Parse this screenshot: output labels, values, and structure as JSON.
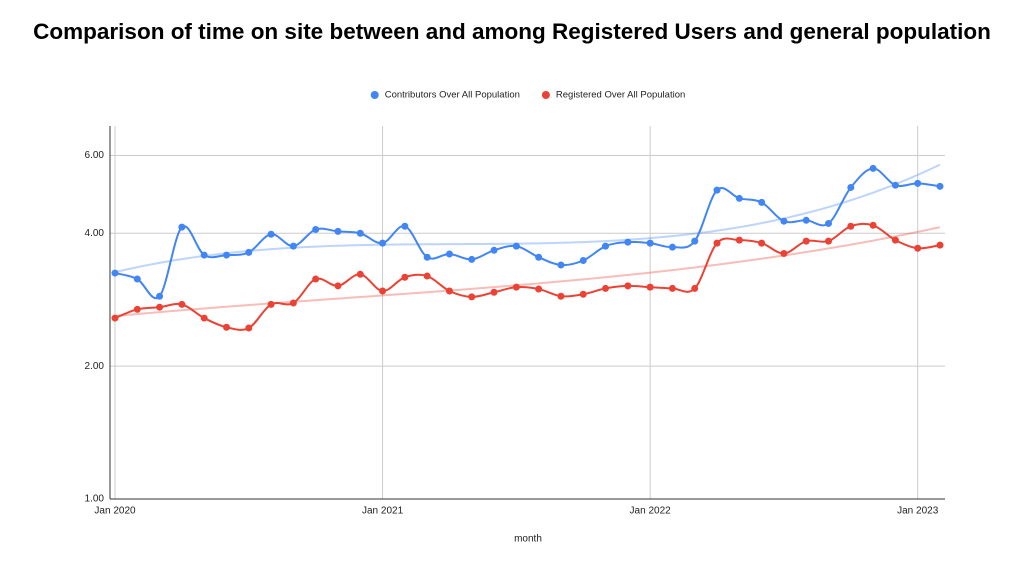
{
  "chart_data": {
    "type": "line",
    "title": "Comparison of time on site between and among Registered Users and general population",
    "x_label": "month",
    "x": [
      "2020-01",
      "2020-02",
      "2020-03",
      "2020-04",
      "2020-05",
      "2020-06",
      "2020-07",
      "2020-08",
      "2020-09",
      "2020-10",
      "2020-11",
      "2020-12",
      "2021-01",
      "2021-02",
      "2021-03",
      "2021-04",
      "2021-05",
      "2021-06",
      "2021-07",
      "2021-08",
      "2021-09",
      "2021-10",
      "2021-11",
      "2021-12",
      "2022-01",
      "2022-02",
      "2022-03",
      "2022-04",
      "2022-05",
      "2022-06",
      "2022-07",
      "2022-08",
      "2022-09",
      "2022-10",
      "2022-11",
      "2022-12",
      "2023-01",
      "2023-02"
    ],
    "series": [
      {
        "name": "Contributors Over All Population",
        "color": "#4285f4",
        "values": [
          3.25,
          3.15,
          2.88,
          4.13,
          3.57,
          3.57,
          3.62,
          3.98,
          3.74,
          4.08,
          4.04,
          4.0,
          3.8,
          4.15,
          3.53,
          3.59,
          3.49,
          3.66,
          3.74,
          3.53,
          3.39,
          3.47,
          3.74,
          3.82,
          3.8,
          3.72,
          3.84,
          5.01,
          4.8,
          4.7,
          4.26,
          4.28,
          4.21,
          5.08,
          5.61,
          5.14,
          5.19,
          5.11
        ]
      },
      {
        "name": "Registered Over All Population",
        "color": "#ea4335",
        "values": [
          2.57,
          2.69,
          2.72,
          2.76,
          2.57,
          2.45,
          2.44,
          2.76,
          2.78,
          3.15,
          3.04,
          3.23,
          2.96,
          3.18,
          3.2,
          2.96,
          2.87,
          2.94,
          3.02,
          2.99,
          2.88,
          2.91,
          3.0,
          3.04,
          3.02,
          3.0,
          3.0,
          3.8,
          3.86,
          3.8,
          3.6,
          3.84,
          3.84,
          4.15,
          4.17,
          3.86,
          3.7,
          3.76
        ]
      }
    ],
    "xlim": [
      "2020-01",
      "2023-02"
    ],
    "xticks": [
      {
        "value": "2020-01",
        "label": "Jan 2020"
      },
      {
        "value": "2021-01",
        "label": "Jan 2021"
      },
      {
        "value": "2022-01",
        "label": "Jan 2022"
      },
      {
        "value": "2023-01",
        "label": "Jan 2023"
      }
    ],
    "ylim": [
      1,
      7
    ],
    "yticks": [
      {
        "value": 1,
        "label": "1.00"
      },
      {
        "value": 2,
        "label": "2.00"
      },
      {
        "value": 4,
        "label": "4.00"
      },
      {
        "value": 6,
        "label": "6.00"
      }
    ],
    "log_y": true,
    "grid": true,
    "legend": "top",
    "trendline": true
  }
}
